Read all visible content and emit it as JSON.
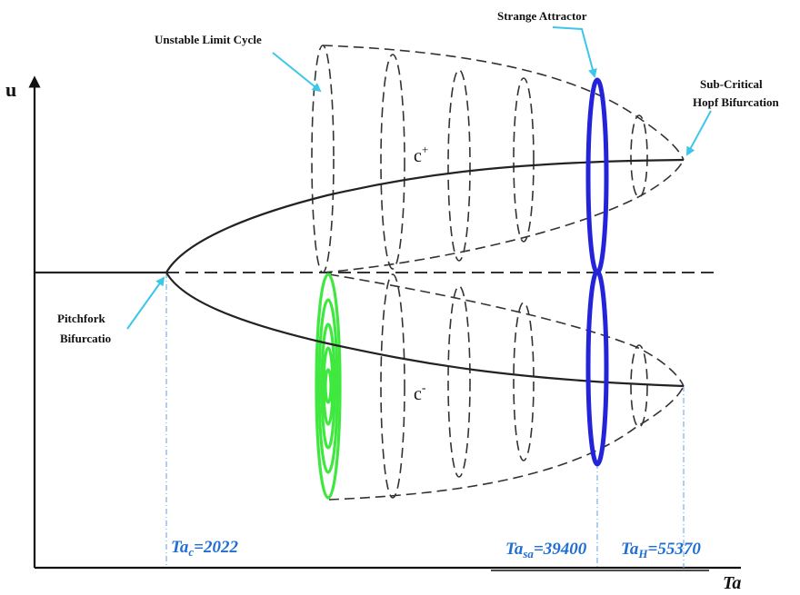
{
  "axes": {
    "y_label": "u",
    "x_label": "Ta"
  },
  "labels": {
    "unstable_limit_cycle": "Unstable Limit Cycle",
    "strange_attractor": "Strange Attractor",
    "subcritical_line1": "Sub-Critical",
    "subcritical_line2": "Hopf Bifurcation",
    "pitchfork_line1": "Pitchfork",
    "pitchfork_line2": "Bifurcatio",
    "branch_upper": "c",
    "branch_upper_sup": "+",
    "branch_lower": "c",
    "branch_lower_sup": "-"
  },
  "critical_values": {
    "ta_c_main": "Ta",
    "ta_c_sub": "c",
    "ta_c_value": "=2022",
    "ta_sa_main": "Ta",
    "ta_sa_sub": "sa",
    "ta_sa_value": "=39400",
    "ta_h_main": "Ta",
    "ta_h_sub": "H",
    "ta_h_value": "=55370"
  },
  "colors": {
    "strange_attractor": "#2323d9",
    "stable_cycles": "#3ee83e",
    "pointer": "#3cc6ea",
    "guide_lines": "#7aaee8",
    "value_labels": "#1f6fd1"
  }
}
